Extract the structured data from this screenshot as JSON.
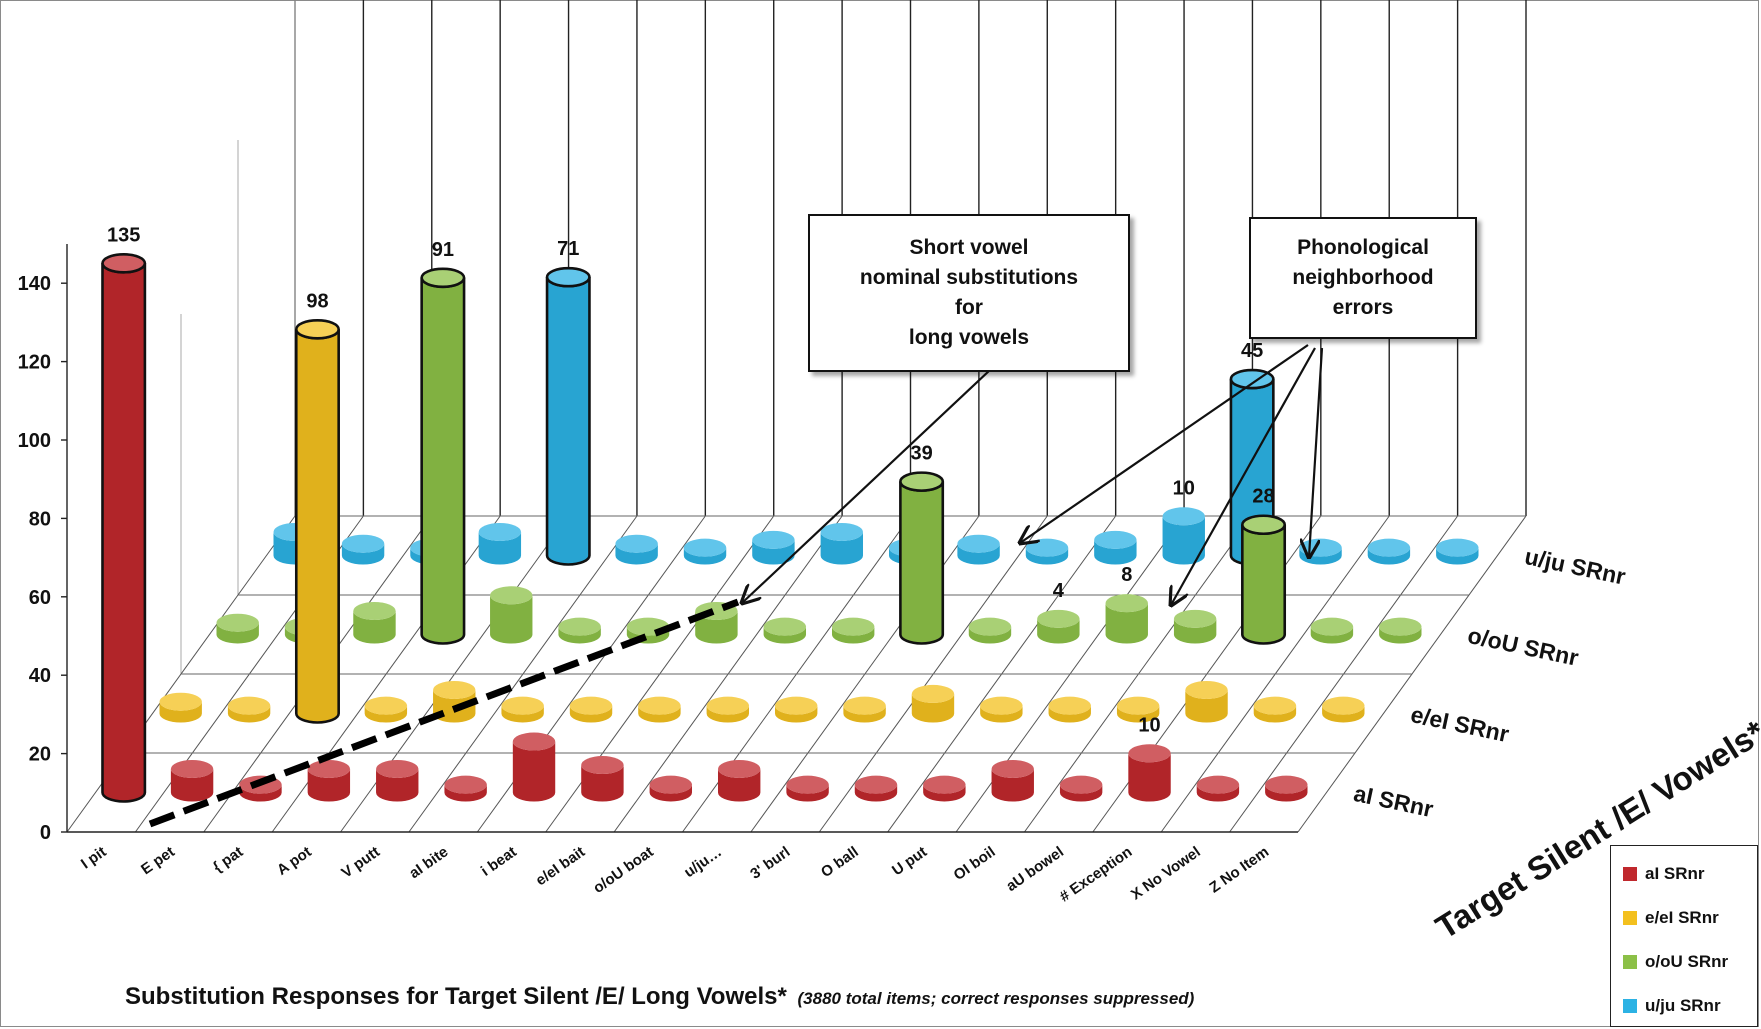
{
  "chart_data": {
    "type": "bar",
    "subtype": "3d-cylinder",
    "title": "Substitution  Responses  for Target Silent /E/ Long Vowels*",
    "subtitle": "(3880 total items; correct responses suppressed)",
    "depth_axis_label": "Target Silent /E/ Vowels*",
    "ylim": [
      0,
      140
    ],
    "y_ticks": [
      "0",
      "20",
      "40",
      "60",
      "80",
      "100",
      "120",
      "140"
    ],
    "categories": [
      "I   pit",
      "E pet",
      "{  pat",
      "A  pot",
      "V  putt",
      "aI  bite",
      "i  beat",
      "e/eI  bait",
      "o/oU boat",
      "u/ju…",
      "3'  burl",
      "O ball",
      "U  put",
      "OI boil",
      "aU bowel",
      "# Exception",
      "X No Vowel",
      "Z No Item"
    ],
    "series": [
      {
        "name": "aI SRnr",
        "color": "#c0282d",
        "values": [
          135,
          6,
          2,
          6,
          6,
          2,
          13,
          7,
          2,
          6,
          2,
          2,
          2,
          6,
          2,
          10,
          2,
          2
        ],
        "labels": [
          "135",
          "",
          "",
          "",
          "",
          "",
          "",
          "",
          "",
          "",
          "",
          "",
          "",
          "",
          "",
          "10",
          "",
          ""
        ]
      },
      {
        "name": "e/eI SRnr",
        "color": "#f3c01e",
        "values": [
          3,
          2,
          98,
          2,
          6,
          2,
          2,
          2,
          2,
          2,
          2,
          5,
          2,
          2,
          2,
          6,
          2,
          2
        ],
        "labels": [
          "",
          "",
          "98",
          "",
          "",
          "",
          "",
          "",
          "",
          "",
          "",
          "",
          "",
          "",
          "",
          "",
          "",
          ""
        ]
      },
      {
        "name": "o/oU SRnr",
        "color": "#8cc047",
        "values": [
          3,
          2,
          6,
          91,
          10,
          2,
          2,
          6,
          2,
          2,
          39,
          2,
          4,
          8,
          4,
          28,
          2,
          2
        ],
        "labels": [
          "",
          "",
          "",
          "91",
          "",
          "",
          "",
          "",
          "",
          "",
          "39",
          "",
          "4",
          "8",
          "",
          "28",
          "",
          ""
        ]
      },
      {
        "name": "u/ju SRnr",
        "color": "#2cb2e4",
        "values": [
          6,
          3,
          2,
          6,
          71,
          3,
          2,
          4,
          6,
          2,
          3,
          2,
          4,
          10,
          45,
          2,
          2,
          2
        ],
        "labels": [
          "",
          "",
          "",
          "",
          "71",
          "",
          "",
          "",
          "",
          "",
          "",
          "",
          "",
          "10",
          "45",
          "",
          "",
          ""
        ]
      }
    ],
    "legend_position": "bottom-right",
    "grid": true
  },
  "annotations": {
    "short_vowel": "Short vowel\nnominal substitutions\nfor\nlong vowels",
    "phonological": "Phonological\nneighborhood\nerrors"
  },
  "legend": [
    {
      "label": "aI SRnr",
      "color": "#c0282d"
    },
    {
      "label": "e/eI SRnr",
      "color": "#f3c01e"
    },
    {
      "label": "o/oU SRnr",
      "color": "#8cc047"
    },
    {
      "label": "u/ju SRnr",
      "color": "#2cb2e4"
    }
  ]
}
